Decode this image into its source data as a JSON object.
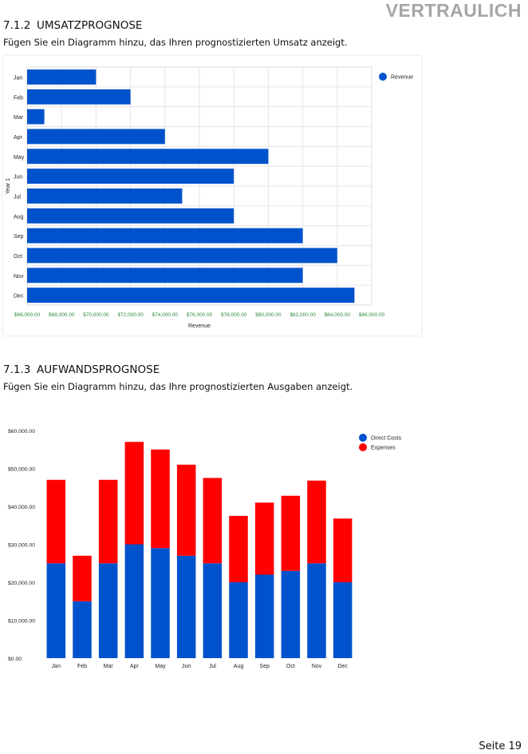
{
  "header": {
    "confidential": "VERTRAULICH"
  },
  "section_revenue": {
    "number": "7.1.2",
    "title": "UMSATZPROGNOSE",
    "description": "Fügen Sie ein Diagramm hinzu, das Ihren prognostizierten Umsatz anzeigt."
  },
  "section_expenses": {
    "number": "7.1.3",
    "title": "AUFWANDSPROGNOSE",
    "description": "Fügen Sie ein Diagramm hinzu, das Ihre prognostizierten Ausgaben anzeigt."
  },
  "footer": {
    "page": "Seite 19"
  },
  "colors": {
    "blue": "#0052cc",
    "red": "#ff0000",
    "tick_green": "#2e8b3a",
    "grid": "#e6e6e6"
  },
  "chart_data": [
    {
      "type": "bar",
      "orientation": "horizontal",
      "categories": [
        "Jan",
        "Feb",
        "Mar",
        "Apr",
        "May",
        "Jun",
        "Jul",
        "Aug",
        "Sep",
        "Oct",
        "Nov",
        "Dec"
      ],
      "series": [
        {
          "name": "Revenue",
          "values": [
            70000,
            72000,
            67000,
            74000,
            80000,
            78000,
            75000,
            78000,
            82000,
            84000,
            82000,
            85000
          ]
        }
      ],
      "xlim": [
        66000,
        86000
      ],
      "xticks": [
        66000,
        68000,
        70000,
        72000,
        74000,
        76000,
        78000,
        80000,
        82000,
        84000,
        86000
      ],
      "xtick_labels": [
        "$66,000.00",
        "$68,000.00",
        "$70,000.00",
        "$72,000.00",
        "$74,000.00",
        "$76,000.00",
        "$78,000.00",
        "$80,000.00",
        "$82,000.00",
        "$84,000.00",
        "$86,000.00"
      ],
      "xlabel": "Revenue",
      "ylabel": "Year 1",
      "legend": [
        "Revenue"
      ],
      "legend_position": "top-right",
      "grid": true
    },
    {
      "type": "bar",
      "stacked": true,
      "categories": [
        "Jan",
        "Feb",
        "Mar",
        "Apr",
        "May",
        "Jun",
        "Jul",
        "Aug",
        "Sep",
        "Oct",
        "Nov",
        "Dec"
      ],
      "series": [
        {
          "name": "Direct Costs",
          "values": [
            25000,
            15000,
            25000,
            30000,
            29000,
            27000,
            25000,
            20000,
            22000,
            23000,
            25000,
            20000
          ]
        },
        {
          "name": "Expenses",
          "values": [
            22000,
            12000,
            22000,
            27000,
            26000,
            24000,
            22500,
            17500,
            19000,
            19800,
            21800,
            16800
          ]
        }
      ],
      "ylim": [
        0,
        60000
      ],
      "yticks": [
        0,
        10000,
        20000,
        30000,
        40000,
        50000,
        60000
      ],
      "ytick_labels": [
        "$0.00",
        "$10,000.00",
        "$20,000.00",
        "$30,000.00",
        "$40,000.00",
        "$50,000.00",
        "$60,000.00"
      ],
      "legend": [
        "Direct Costs",
        "Expenses"
      ],
      "legend_position": "top-right",
      "grid": false
    }
  ]
}
